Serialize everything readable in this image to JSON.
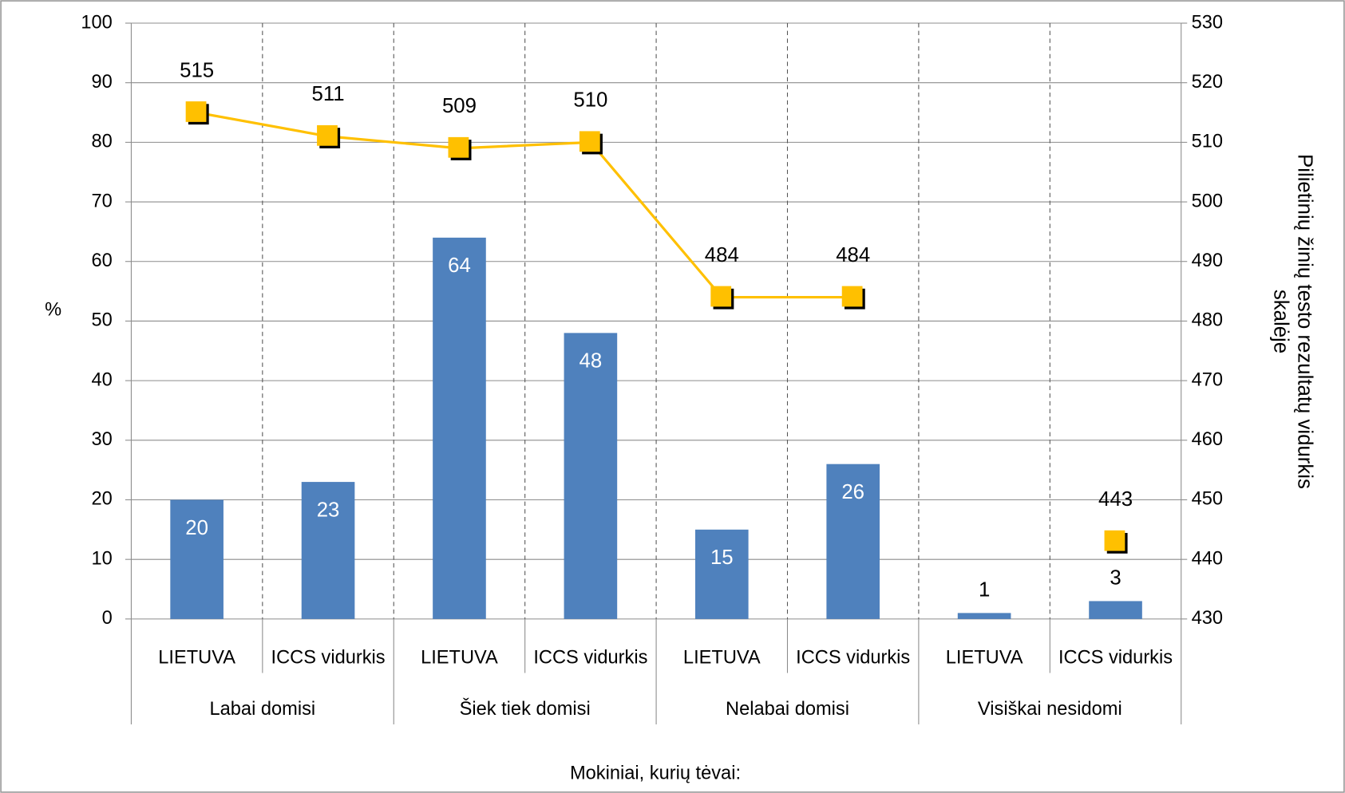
{
  "chart_data": {
    "type": "bar",
    "categories": [
      "LIETUVA",
      "ICCS vidurkis",
      "LIETUVA",
      "ICCS vidurkis",
      "LIETUVA",
      "ICCS vidurkis",
      "LIETUVA",
      "ICCS vidurkis"
    ],
    "groups": [
      "Labai domisi",
      "Šiek tiek domisi",
      "Nelabai domisi",
      "Visiškai nesidomi"
    ],
    "series": [
      {
        "type": "bar",
        "color": "#4f81bd",
        "values": [
          20,
          23,
          64,
          48,
          15,
          26,
          1,
          3
        ]
      },
      {
        "type": "line",
        "axis": "y2",
        "color": "#ffc000",
        "values": [
          515,
          511,
          509,
          510,
          484,
          484,
          null,
          443
        ]
      }
    ],
    "xlabel": "Mokiniai, kurių tėvai:",
    "ylabel": "%",
    "y2label": [
      "Pilietinių žinių testo rezultatų vidurkis",
      "skalėje"
    ],
    "ylim": [
      0,
      100
    ],
    "yticks": [
      0,
      10,
      20,
      30,
      40,
      50,
      60,
      70,
      80,
      90,
      100
    ],
    "y2lim": [
      430,
      530
    ],
    "y2ticks": [
      430,
      440,
      450,
      460,
      470,
      480,
      490,
      500,
      510,
      520,
      530
    ],
    "grid": true
  }
}
